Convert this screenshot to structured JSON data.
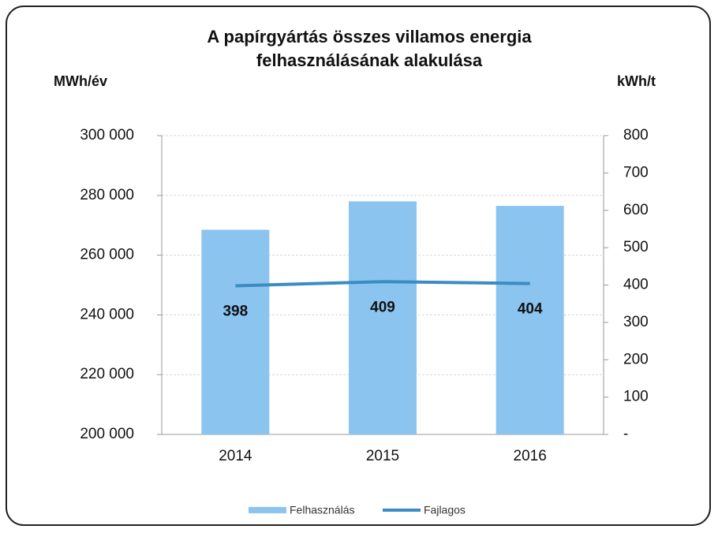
{
  "chart_data": {
    "type": "bar-line",
    "title": [
      "A papírgyártás összes villamos energia",
      "felhasználásának alakulása"
    ],
    "y_label": "MWh/év",
    "y2_label": "kWh/t",
    "categories": [
      "2014",
      "2015",
      "2016"
    ],
    "series": [
      {
        "name": "Felhasználás",
        "type": "bar",
        "color": "#8cc4f0",
        "values": [
          268500,
          278000,
          276500
        ]
      },
      {
        "name": "Fajlagos",
        "type": "line",
        "axis": "y2",
        "color": "#3a8cc2",
        "values": [
          398,
          409,
          404
        ]
      }
    ],
    "ylim": [
      200000,
      300000
    ],
    "yticks": [
      {
        "value": 200000,
        "label": "200 000"
      },
      {
        "value": 220000,
        "label": "220 000"
      },
      {
        "value": 240000,
        "label": "240 000"
      },
      {
        "value": 260000,
        "label": "260 000"
      },
      {
        "value": 280000,
        "label": "280 000"
      },
      {
        "value": 300000,
        "label": "300 000"
      }
    ],
    "y2lim": [
      0,
      800
    ],
    "y2ticks": [
      {
        "value": 0,
        "label": "-"
      },
      100,
      200,
      300,
      400,
      500,
      600,
      700,
      800
    ],
    "grid": true,
    "legend": "bottom"
  }
}
